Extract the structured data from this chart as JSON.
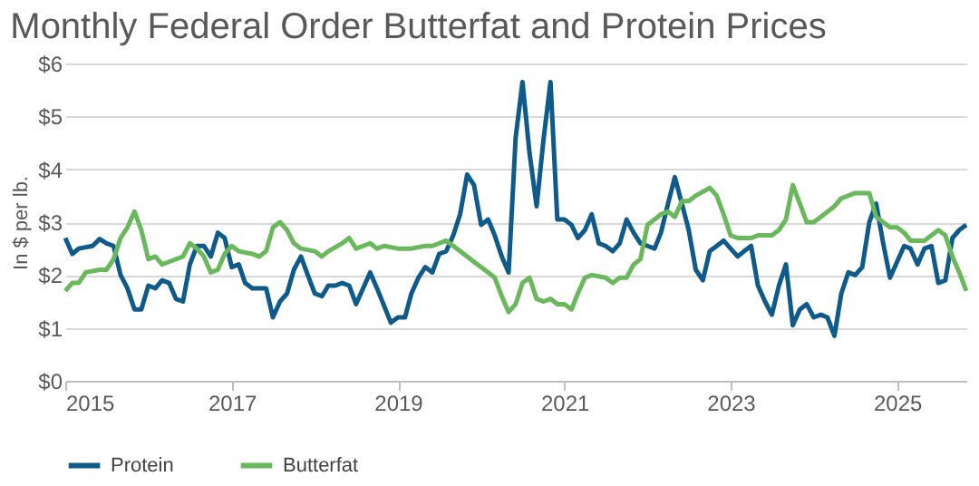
{
  "chart_data": {
    "type": "line",
    "title": "Monthly Federal Order Butterfat and Protein Prices",
    "ylabel": "In $ per lb.",
    "xlim": [
      "2015-01",
      "2025-11"
    ],
    "xticks": [
      "2015",
      "2017",
      "2019",
      "2021",
      "2023",
      "2025"
    ],
    "ylim": [
      0,
      6
    ],
    "yticks": [
      {
        "value": 0,
        "label": "$0"
      },
      {
        "value": 1,
        "label": "$1"
      },
      {
        "value": 2,
        "label": "$2"
      },
      {
        "value": 3,
        "label": "$3"
      },
      {
        "value": 4,
        "label": "$4"
      },
      {
        "value": 5,
        "label": "$5"
      },
      {
        "value": 6,
        "label": "$6"
      }
    ],
    "grid": "y",
    "legend": "bottom",
    "marker": "none",
    "line_style": "solid",
    "series": [
      {
        "name": "Protein",
        "color": "#0e5a8a",
        "x": [
          "2015-01",
          "2015-02",
          "2015-03",
          "2015-05",
          "2015-06",
          "2015-07",
          "2015-08",
          "2015-09",
          "2015-10",
          "2015-11",
          "2015-12",
          "2016-01",
          "2016-02",
          "2016-03",
          "2016-04",
          "2016-05",
          "2016-06",
          "2016-07",
          "2016-08",
          "2016-09",
          "2016-10",
          "2016-11",
          "2016-12",
          "2017-01",
          "2017-02",
          "2017-03",
          "2017-04",
          "2017-06",
          "2017-07",
          "2017-08",
          "2017-09",
          "2017-10",
          "2017-11",
          "2017-12",
          "2018-01",
          "2018-02",
          "2018-03",
          "2018-04",
          "2018-05",
          "2018-06",
          "2018-07",
          "2018-08",
          "2018-09",
          "2018-10",
          "2018-12",
          "2019-01",
          "2019-02",
          "2019-03",
          "2019-04",
          "2019-05",
          "2019-06",
          "2019-07",
          "2019-08",
          "2019-09",
          "2019-10",
          "2019-11",
          "2019-12",
          "2020-01",
          "2020-02",
          "2020-03",
          "2020-04",
          "2020-05",
          "2020-06",
          "2020-07",
          "2020-08",
          "2020-09",
          "2020-10",
          "2020-11",
          "2020-12",
          "2021-01",
          "2021-02",
          "2021-03",
          "2021-04",
          "2021-05",
          "2021-06",
          "2021-07",
          "2021-08",
          "2021-09",
          "2021-10",
          "2021-11",
          "2021-12",
          "2022-01",
          "2022-02",
          "2022-03",
          "2022-04",
          "2022-05",
          "2022-06",
          "2022-07",
          "2022-08",
          "2022-09",
          "2022-10",
          "2022-11",
          "2022-12",
          "2023-01",
          "2023-02",
          "2023-03",
          "2023-04",
          "2023-05",
          "2023-06",
          "2023-07",
          "2023-08",
          "2023-09",
          "2023-10",
          "2023-11",
          "2023-12",
          "2024-01",
          "2024-02",
          "2024-03",
          "2024-04",
          "2024-05",
          "2024-06",
          "2024-07",
          "2024-08",
          "2024-09",
          "2024-10",
          "2024-11",
          "2024-12",
          "2025-01",
          "2025-02",
          "2025-03",
          "2025-04",
          "2025-05",
          "2025-06",
          "2025-07",
          "2025-08",
          "2025-09",
          "2025-10",
          "2025-11"
        ],
        "values": [
          2.7,
          2.4,
          2.5,
          2.55,
          2.68,
          2.6,
          2.55,
          2.0,
          1.75,
          1.35,
          1.35,
          1.8,
          1.75,
          1.9,
          1.85,
          1.55,
          1.5,
          2.2,
          2.55,
          2.55,
          2.35,
          2.8,
          2.7,
          2.15,
          2.2,
          1.85,
          1.75,
          1.75,
          1.2,
          1.5,
          1.65,
          2.1,
          2.35,
          2.0,
          1.65,
          1.6,
          1.8,
          1.8,
          1.85,
          1.8,
          1.45,
          1.75,
          2.05,
          1.75,
          1.1,
          1.2,
          1.2,
          1.65,
          1.95,
          2.15,
          2.05,
          2.4,
          2.45,
          2.75,
          3.15,
          3.9,
          3.7,
          2.95,
          3.05,
          2.75,
          2.35,
          2.05,
          4.6,
          5.65,
          4.3,
          3.3,
          4.55,
          5.65,
          3.05,
          3.05,
          2.95,
          2.7,
          2.85,
          3.15,
          2.6,
          2.55,
          2.45,
          2.6,
          3.05,
          2.8,
          2.6,
          2.55,
          2.5,
          2.8,
          3.35,
          3.85,
          3.35,
          2.85,
          2.1,
          1.9,
          2.45,
          2.55,
          2.65,
          2.5,
          2.35,
          2.45,
          2.55,
          1.8,
          1.5,
          1.25,
          1.8,
          2.2,
          1.05,
          1.35,
          1.45,
          1.2,
          1.25,
          1.2,
          0.85,
          1.65,
          2.05,
          2.0,
          2.15,
          3.0,
          3.35,
          2.6,
          1.95,
          2.25,
          2.55,
          2.5,
          2.2,
          2.5,
          2.55,
          1.85,
          1.9,
          2.7,
          2.85,
          2.95
        ]
      },
      {
        "name": "Butterfat",
        "color": "#6ab85c",
        "x": [
          "2015-01",
          "2015-02",
          "2015-03",
          "2015-04",
          "2015-06",
          "2015-07",
          "2015-08",
          "2015-09",
          "2015-10",
          "2015-11",
          "2015-12",
          "2016-01",
          "2016-02",
          "2016-03",
          "2016-04",
          "2016-06",
          "2016-07",
          "2016-08",
          "2016-09",
          "2016-10",
          "2016-11",
          "2016-12",
          "2017-01",
          "2017-02",
          "2017-04",
          "2017-05",
          "2017-06",
          "2017-07",
          "2017-08",
          "2017-09",
          "2017-10",
          "2017-11",
          "2018-01",
          "2018-02",
          "2018-03",
          "2018-05",
          "2018-06",
          "2018-07",
          "2018-08",
          "2018-09",
          "2018-10",
          "2018-11",
          "2019-01",
          "2019-03",
          "2019-05",
          "2019-06",
          "2019-08",
          "2019-09",
          "2019-10",
          "2019-11",
          "2019-12",
          "2020-02",
          "2020-03",
          "2020-04",
          "2020-05",
          "2020-06",
          "2020-07",
          "2020-08",
          "2020-09",
          "2020-10",
          "2020-11",
          "2020-12",
          "2021-01",
          "2021-02",
          "2021-03",
          "2021-04",
          "2021-05",
          "2021-07",
          "2021-08",
          "2021-09",
          "2021-10",
          "2021-11",
          "2021-12",
          "2022-01",
          "2022-02",
          "2022-03",
          "2022-04",
          "2022-05",
          "2022-06",
          "2022-07",
          "2022-08",
          "2022-10",
          "2022-11",
          "2022-12",
          "2023-01",
          "2023-02",
          "2023-04",
          "2023-05",
          "2023-07",
          "2023-08",
          "2023-09",
          "2023-10",
          "2023-11",
          "2023-12",
          "2024-01",
          "2024-02",
          "2024-04",
          "2024-05",
          "2024-07",
          "2024-09",
          "2024-10",
          "2024-11",
          "2024-12",
          "2025-01",
          "2025-02",
          "2025-03",
          "2025-05",
          "2025-06",
          "2025-07",
          "2025-08",
          "2025-09",
          "2025-10",
          "2025-11"
        ],
        "values": [
          1.7,
          1.85,
          1.85,
          2.05,
          2.1,
          2.1,
          2.3,
          2.7,
          2.9,
          3.2,
          2.85,
          2.3,
          2.35,
          2.2,
          2.25,
          2.35,
          2.6,
          2.5,
          2.35,
          2.05,
          2.1,
          2.4,
          2.55,
          2.45,
          2.4,
          2.35,
          2.45,
          2.9,
          3.0,
          2.85,
          2.6,
          2.5,
          2.45,
          2.35,
          2.45,
          2.6,
          2.7,
          2.5,
          2.55,
          2.6,
          2.5,
          2.55,
          2.5,
          2.5,
          2.55,
          2.55,
          2.65,
          2.55,
          2.45,
          2.35,
          2.25,
          2.05,
          1.95,
          1.6,
          1.3,
          1.45,
          1.85,
          1.95,
          1.55,
          1.5,
          1.55,
          1.45,
          1.45,
          1.35,
          1.65,
          1.95,
          2.0,
          1.95,
          1.85,
          1.95,
          1.95,
          2.2,
          2.3,
          2.95,
          3.05,
          3.15,
          3.2,
          3.1,
          3.4,
          3.4,
          3.5,
          3.65,
          3.5,
          3.15,
          2.75,
          2.7,
          2.7,
          2.75,
          2.75,
          2.85,
          3.05,
          3.7,
          3.35,
          3.0,
          3.0,
          3.1,
          3.3,
          3.45,
          3.55,
          3.55,
          3.1,
          3.0,
          2.9,
          2.9,
          2.8,
          2.65,
          2.65,
          2.75,
          2.85,
          2.75,
          2.35,
          2.05,
          1.7
        ]
      }
    ]
  }
}
